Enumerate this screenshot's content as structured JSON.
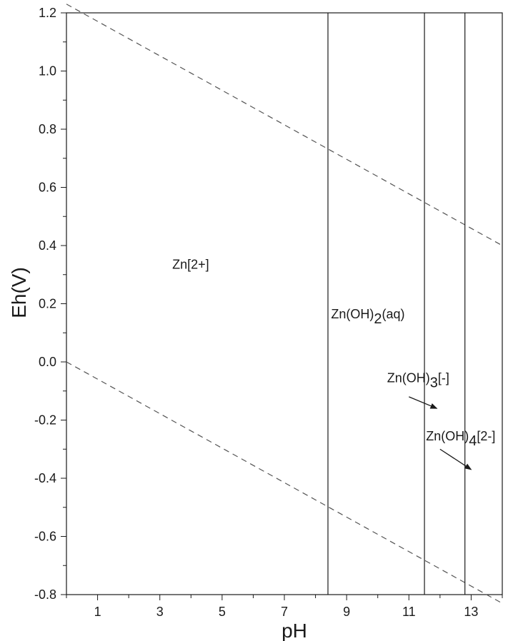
{
  "chart_data": {
    "type": "line",
    "title": "",
    "xlabel": "pH",
    "ylabel": "Eh(V)",
    "xlim": [
      0,
      14
    ],
    "ylim": [
      -0.8,
      1.2
    ],
    "x_ticks": [
      {
        "value": 1,
        "label": "1"
      },
      {
        "value": 3,
        "label": "3"
      },
      {
        "value": 5,
        "label": "5"
      },
      {
        "value": 7,
        "label": "7"
      },
      {
        "value": 9,
        "label": "9"
      },
      {
        "value": 11,
        "label": "11"
      },
      {
        "value": 13,
        "label": "13"
      }
    ],
    "y_ticks": [
      {
        "value": 1.2,
        "label": "1.2"
      },
      {
        "value": 1.0,
        "label": "1.0"
      },
      {
        "value": 0.8,
        "label": "0.8"
      },
      {
        "value": 0.6,
        "label": "0.6"
      },
      {
        "value": 0.4,
        "label": "0.4"
      },
      {
        "value": 0.2,
        "label": "0.2"
      },
      {
        "value": 0.0,
        "label": "0.0"
      },
      {
        "value": -0.2,
        "label": "-0.2"
      },
      {
        "value": -0.4,
        "label": "-0.4"
      },
      {
        "value": -0.6,
        "label": "-0.6"
      },
      {
        "value": -0.8,
        "label": "-0.8"
      }
    ],
    "minor_x_ticks": [
      0,
      2,
      4,
      6,
      8,
      10,
      12,
      14
    ],
    "minor_y_ticks": [
      1.1,
      0.9,
      0.7,
      0.5,
      0.3,
      0.1,
      -0.1,
      -0.3,
      -0.5,
      -0.7
    ],
    "dashed_lines": [
      {
        "x": [
          0,
          14
        ],
        "y": [
          1.23,
          0.4
        ]
      },
      {
        "x": [
          0,
          14
        ],
        "y": [
          0.0,
          -0.83
        ]
      }
    ],
    "boundaries": [
      {
        "x": 8.4
      },
      {
        "x": 11.5
      },
      {
        "x": 12.8
      }
    ],
    "regions": [
      {
        "parts": [
          {
            "t": "Zn[2+]"
          }
        ],
        "x": 3.4,
        "y": 0.32
      },
      {
        "parts": [
          {
            "t": "Zn(OH)"
          },
          {
            "t": "2",
            "sub": true
          },
          {
            "t": "(aq)"
          }
        ],
        "x": 8.5,
        "y": 0.15
      },
      {
        "parts": [
          {
            "t": "Zn(OH)"
          },
          {
            "t": "3",
            "sub": true
          },
          {
            "t": "[-]"
          }
        ],
        "x": 10.3,
        "y": -0.07
      }
    ],
    "annotations": [
      {
        "parts": [
          {
            "t": "Zn(OH)"
          },
          {
            "t": "4",
            "sub": true
          },
          {
            "t": "[2-]"
          }
        ],
        "x": 11.55,
        "y": -0.27,
        "arrow": {
          "from": [
            12.0,
            -0.3
          ],
          "to": [
            13.0,
            -0.37
          ]
        }
      },
      {
        "arrow_only": true,
        "arrow": {
          "from": [
            11.0,
            -0.12
          ],
          "to": [
            11.9,
            -0.16
          ]
        }
      }
    ],
    "grid": false,
    "legend": "none"
  }
}
